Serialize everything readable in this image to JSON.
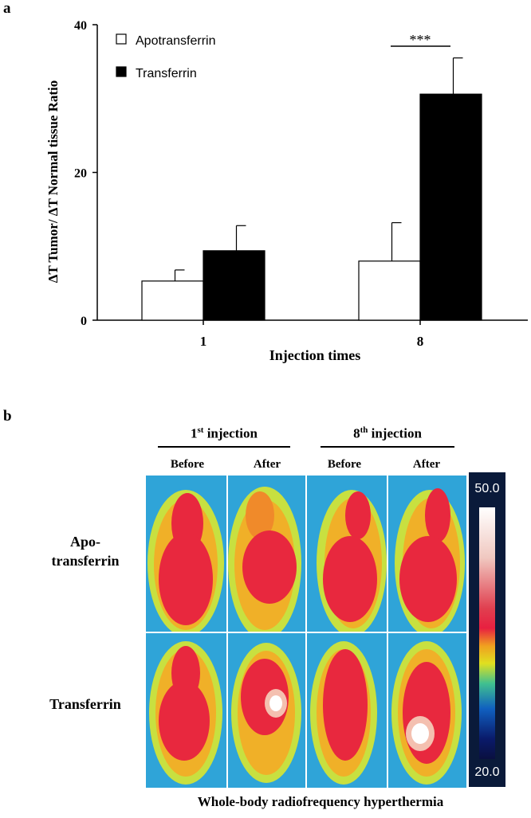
{
  "panel_a_label": "a",
  "panel_b_label": "b",
  "chart_data": {
    "type": "bar",
    "title": "",
    "xlabel": "Injection times",
    "ylabel": "ΔT Tumor/ ΔT Normal tissue Ratio",
    "categories": [
      "1",
      "8"
    ],
    "ylim": [
      0,
      40
    ],
    "yticks": [
      0,
      20,
      40
    ],
    "series": [
      {
        "name": "Apotransferrin",
        "color": "#ffffff",
        "values": [
          5.3,
          8.0
        ],
        "errors": [
          1.5,
          5.2
        ]
      },
      {
        "name": "Transferrin",
        "color": "#000000",
        "values": [
          9.4,
          30.6
        ],
        "errors": [
          3.4,
          4.9
        ]
      }
    ],
    "annotations": [
      {
        "text": "***",
        "category": "8"
      }
    ]
  },
  "panel_b": {
    "groups": [
      {
        "title": "1",
        "title_sup": "st",
        "title_rest": " injection"
      },
      {
        "title": "8",
        "title_sup": "th",
        "title_rest": " injection"
      }
    ],
    "column_labels": [
      "Before",
      "After",
      "Before",
      "After"
    ],
    "row_labels": [
      [
        "Apo-",
        "transferrin"
      ],
      [
        "Transferrin"
      ]
    ],
    "scale_max": "50.0",
    "scale_min": "20.0",
    "caption": "Whole-body radiofrequency hyperthermia"
  }
}
